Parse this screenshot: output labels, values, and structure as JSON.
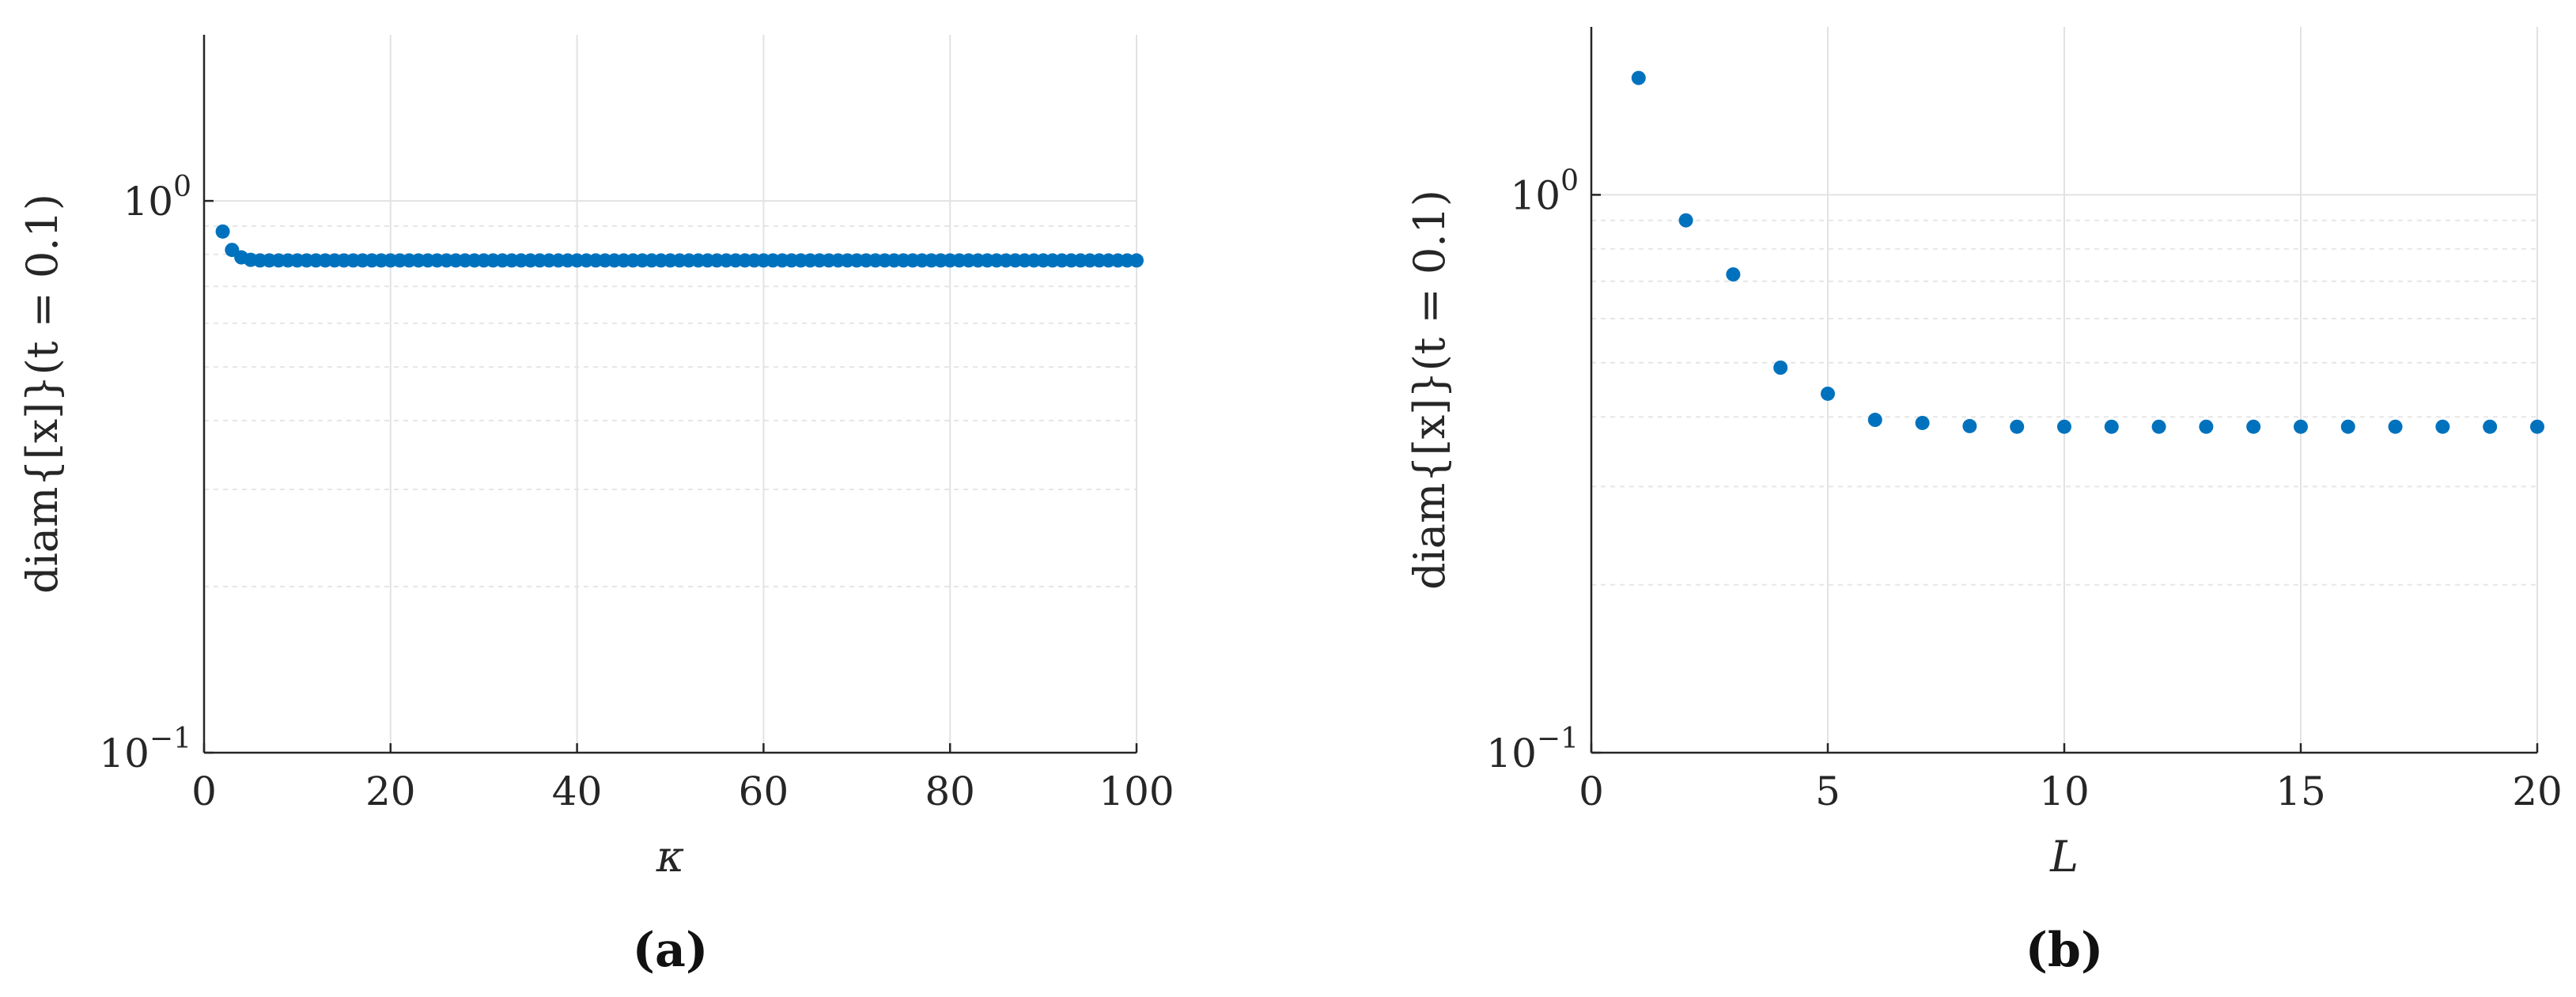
{
  "colors": {
    "marker": "#0072BD",
    "axis": "#262626",
    "grid": "#e2e2e2"
  },
  "chart_data": [
    {
      "type": "scatter",
      "caption": "(a)",
      "xlabel": "κ",
      "ylabel": "diam{[x]}(t = 0.1)",
      "xlim": [
        0,
        100
      ],
      "ylim": [
        0.1,
        2
      ],
      "yscale": "log",
      "grid": true,
      "xticks": [
        0,
        20,
        40,
        60,
        80,
        100
      ],
      "xtick_labels": [
        "0",
        "20",
        "40",
        "60",
        "80",
        "100"
      ],
      "yticks": [
        0.1,
        1
      ],
      "ytick_labels": [
        {
          "base": "10",
          "exp": "−1"
        },
        {
          "base": "10",
          "exp": "0"
        }
      ],
      "x": [
        2,
        3,
        4,
        5,
        6,
        7,
        8,
        9,
        10,
        11,
        12,
        13,
        14,
        15,
        16,
        17,
        18,
        19,
        20,
        21,
        22,
        23,
        24,
        25,
        26,
        27,
        28,
        29,
        30,
        31,
        32,
        33,
        34,
        35,
        36,
        37,
        38,
        39,
        40,
        41,
        42,
        43,
        44,
        45,
        46,
        47,
        48,
        49,
        50,
        51,
        52,
        53,
        54,
        55,
        56,
        57,
        58,
        59,
        60,
        61,
        62,
        63,
        64,
        65,
        66,
        67,
        68,
        69,
        70,
        71,
        72,
        73,
        74,
        75,
        76,
        77,
        78,
        79,
        80,
        81,
        82,
        83,
        84,
        85,
        86,
        87,
        88,
        89,
        90,
        91,
        92,
        93,
        94,
        95,
        96,
        97,
        98,
        99,
        100
      ],
      "y": [
        0.88,
        0.815,
        0.79,
        0.782,
        0.78,
        0.78,
        0.78,
        0.78,
        0.78,
        0.78,
        0.78,
        0.78,
        0.78,
        0.78,
        0.78,
        0.78,
        0.78,
        0.78,
        0.78,
        0.78,
        0.78,
        0.78,
        0.78,
        0.78,
        0.78,
        0.78,
        0.78,
        0.78,
        0.78,
        0.78,
        0.78,
        0.78,
        0.78,
        0.78,
        0.78,
        0.78,
        0.78,
        0.78,
        0.78,
        0.78,
        0.78,
        0.78,
        0.78,
        0.78,
        0.78,
        0.78,
        0.78,
        0.78,
        0.78,
        0.78,
        0.78,
        0.78,
        0.78,
        0.78,
        0.78,
        0.78,
        0.78,
        0.78,
        0.78,
        0.78,
        0.78,
        0.78,
        0.78,
        0.78,
        0.78,
        0.78,
        0.78,
        0.78,
        0.78,
        0.78,
        0.78,
        0.78,
        0.78,
        0.78,
        0.78,
        0.78,
        0.78,
        0.78,
        0.78,
        0.78,
        0.78,
        0.78,
        0.78,
        0.78,
        0.78,
        0.78,
        0.78,
        0.78,
        0.78,
        0.78,
        0.78,
        0.78,
        0.78,
        0.78,
        0.78,
        0.78,
        0.78,
        0.78,
        0.78
      ]
    },
    {
      "type": "scatter",
      "caption": "(b)",
      "xlabel": "L",
      "ylabel": "diam{[x]}(t = 0.1)",
      "xlim": [
        0,
        20
      ],
      "ylim": [
        0.1,
        2
      ],
      "yscale": "log",
      "grid": true,
      "xticks": [
        0,
        5,
        10,
        15,
        20
      ],
      "xtick_labels": [
        "0",
        "5",
        "10",
        "15",
        "20"
      ],
      "yticks": [
        0.1,
        1
      ],
      "ytick_labels": [
        {
          "base": "10",
          "exp": "−1"
        },
        {
          "base": "10",
          "exp": "0"
        }
      ],
      "x": [
        1,
        2,
        3,
        4,
        5,
        6,
        7,
        8,
        9,
        10,
        11,
        12,
        13,
        14,
        15,
        16,
        17,
        18,
        19,
        20
      ],
      "y": [
        1.62,
        0.9,
        0.72,
        0.49,
        0.44,
        0.395,
        0.39,
        0.385,
        0.384,
        0.384,
        0.384,
        0.384,
        0.384,
        0.384,
        0.384,
        0.384,
        0.384,
        0.384,
        0.384,
        0.384
      ]
    }
  ]
}
